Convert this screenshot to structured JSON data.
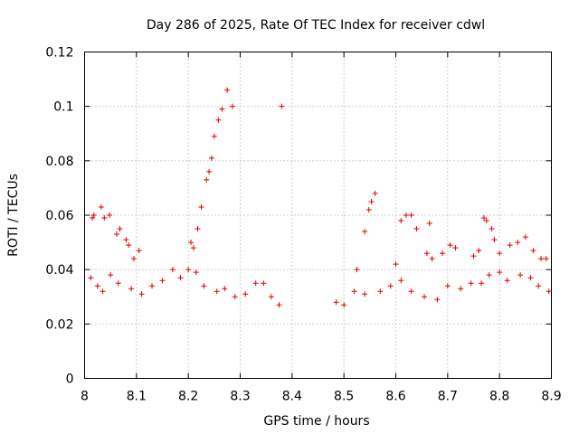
{
  "chart_data": {
    "type": "scatter",
    "title": "Day 286 of 2025, Rate Of TEC Index for receiver cdwl",
    "xlabel": "GPS time / hours",
    "ylabel": "ROTI / TECUs",
    "xlim": [
      8,
      8.9
    ],
    "ylim": [
      0,
      0.12
    ],
    "x_ticks": [
      "8",
      "8.1",
      "8.2",
      "8.3",
      "8.4",
      "8.5",
      "8.6",
      "8.7",
      "8.8",
      "8.9"
    ],
    "y_ticks": [
      "0",
      "0.02",
      "0.04",
      "0.06",
      "0.08",
      "0.1",
      "0.12"
    ],
    "grid": true,
    "marker": "+",
    "color": "#e00000",
    "series": [
      {
        "name": "cdwl ROTI",
        "x": [
          8.015,
          8.018,
          8.032,
          8.038,
          8.048,
          8.062,
          8.068,
          8.08,
          8.085,
          8.095,
          8.105,
          8.205,
          8.21,
          8.218,
          8.225,
          8.235,
          8.24,
          8.245,
          8.25,
          8.258,
          8.265,
          8.275,
          8.285,
          8.38,
          8.525,
          8.54,
          8.548,
          8.553,
          8.56,
          8.6,
          8.61,
          8.62,
          8.63,
          8.64,
          8.66,
          8.665,
          8.67,
          8.69,
          8.705,
          8.715,
          8.75,
          8.76,
          8.77,
          8.775,
          8.785,
          8.79,
          8.8,
          8.82,
          8.835,
          8.85,
          8.865,
          8.88,
          8.89,
          8.012,
          8.025,
          8.035,
          8.05,
          8.065,
          8.09,
          8.11,
          8.13,
          8.15,
          8.17,
          8.185,
          8.2,
          8.215,
          8.23,
          8.255,
          8.27,
          8.29,
          8.31,
          8.33,
          8.345,
          8.36,
          8.375,
          8.485,
          8.5,
          8.52,
          8.54,
          8.57,
          8.59,
          8.61,
          8.63,
          8.655,
          8.68,
          8.7,
          8.725,
          8.745,
          8.765,
          8.78,
          8.8,
          8.815,
          8.84,
          8.86,
          8.875,
          8.895
        ],
        "y": [
          0.059,
          0.06,
          0.063,
          0.059,
          0.06,
          0.053,
          0.055,
          0.051,
          0.049,
          0.044,
          0.047,
          0.05,
          0.048,
          0.055,
          0.063,
          0.073,
          0.076,
          0.081,
          0.089,
          0.095,
          0.099,
          0.106,
          0.1,
          0.1,
          0.04,
          0.054,
          0.062,
          0.065,
          0.068,
          0.042,
          0.058,
          0.06,
          0.06,
          0.055,
          0.046,
          0.057,
          0.044,
          0.046,
          0.049,
          0.048,
          0.045,
          0.047,
          0.059,
          0.058,
          0.055,
          0.051,
          0.046,
          0.049,
          0.05,
          0.052,
          0.047,
          0.044,
          0.044,
          0.037,
          0.034,
          0.032,
          0.038,
          0.035,
          0.033,
          0.031,
          0.034,
          0.036,
          0.04,
          0.037,
          0.04,
          0.039,
          0.034,
          0.032,
          0.033,
          0.03,
          0.031,
          0.035,
          0.035,
          0.03,
          0.027,
          0.028,
          0.027,
          0.032,
          0.031,
          0.032,
          0.034,
          0.036,
          0.032,
          0.03,
          0.029,
          0.034,
          0.033,
          0.035,
          0.035,
          0.038,
          0.039,
          0.036,
          0.038,
          0.037,
          0.034,
          0.032
        ]
      }
    ]
  }
}
